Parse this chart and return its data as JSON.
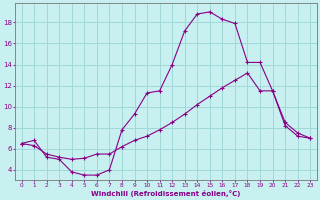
{
  "xlabel": "Windchill (Refroidissement éolien,°C)",
  "bg_color": "#c8f0f0",
  "grid_color": "#a0d8d8",
  "line_color": "#880088",
  "xlim": [
    -0.5,
    23.5
  ],
  "ylim": [
    3.0,
    19.8
  ],
  "xticks": [
    0,
    1,
    2,
    3,
    4,
    5,
    6,
    7,
    8,
    9,
    10,
    11,
    12,
    13,
    14,
    15,
    16,
    17,
    18,
    19,
    20,
    21,
    22,
    23
  ],
  "yticks": [
    4,
    6,
    8,
    10,
    12,
    14,
    16,
    18
  ],
  "line1_x": [
    0,
    1,
    2,
    3,
    4,
    5,
    6,
    7,
    8,
    9,
    10,
    11,
    12,
    13,
    14,
    15,
    16,
    17,
    18,
    19,
    20,
    21,
    22,
    23
  ],
  "line1_y": [
    6.5,
    6.8,
    5.2,
    5.0,
    3.8,
    3.5,
    3.5,
    4.0,
    7.8,
    9.3,
    11.3,
    11.5,
    14.0,
    17.2,
    18.8,
    19.0,
    18.3,
    17.9,
    14.2,
    14.2,
    11.5,
    8.2,
    7.2,
    7.0
  ],
  "line2_x": [
    0,
    1,
    2,
    3,
    4,
    5,
    6,
    7,
    8,
    9,
    10,
    11,
    12,
    13,
    14,
    15,
    16,
    17,
    18,
    19,
    20,
    21,
    22,
    23
  ],
  "line2_y": [
    6.5,
    6.3,
    5.5,
    5.2,
    5.0,
    5.1,
    5.5,
    5.5,
    6.2,
    6.8,
    7.2,
    7.8,
    8.5,
    9.3,
    10.2,
    11.0,
    11.8,
    12.5,
    13.2,
    11.5,
    11.5,
    8.5,
    7.5,
    7.0
  ]
}
